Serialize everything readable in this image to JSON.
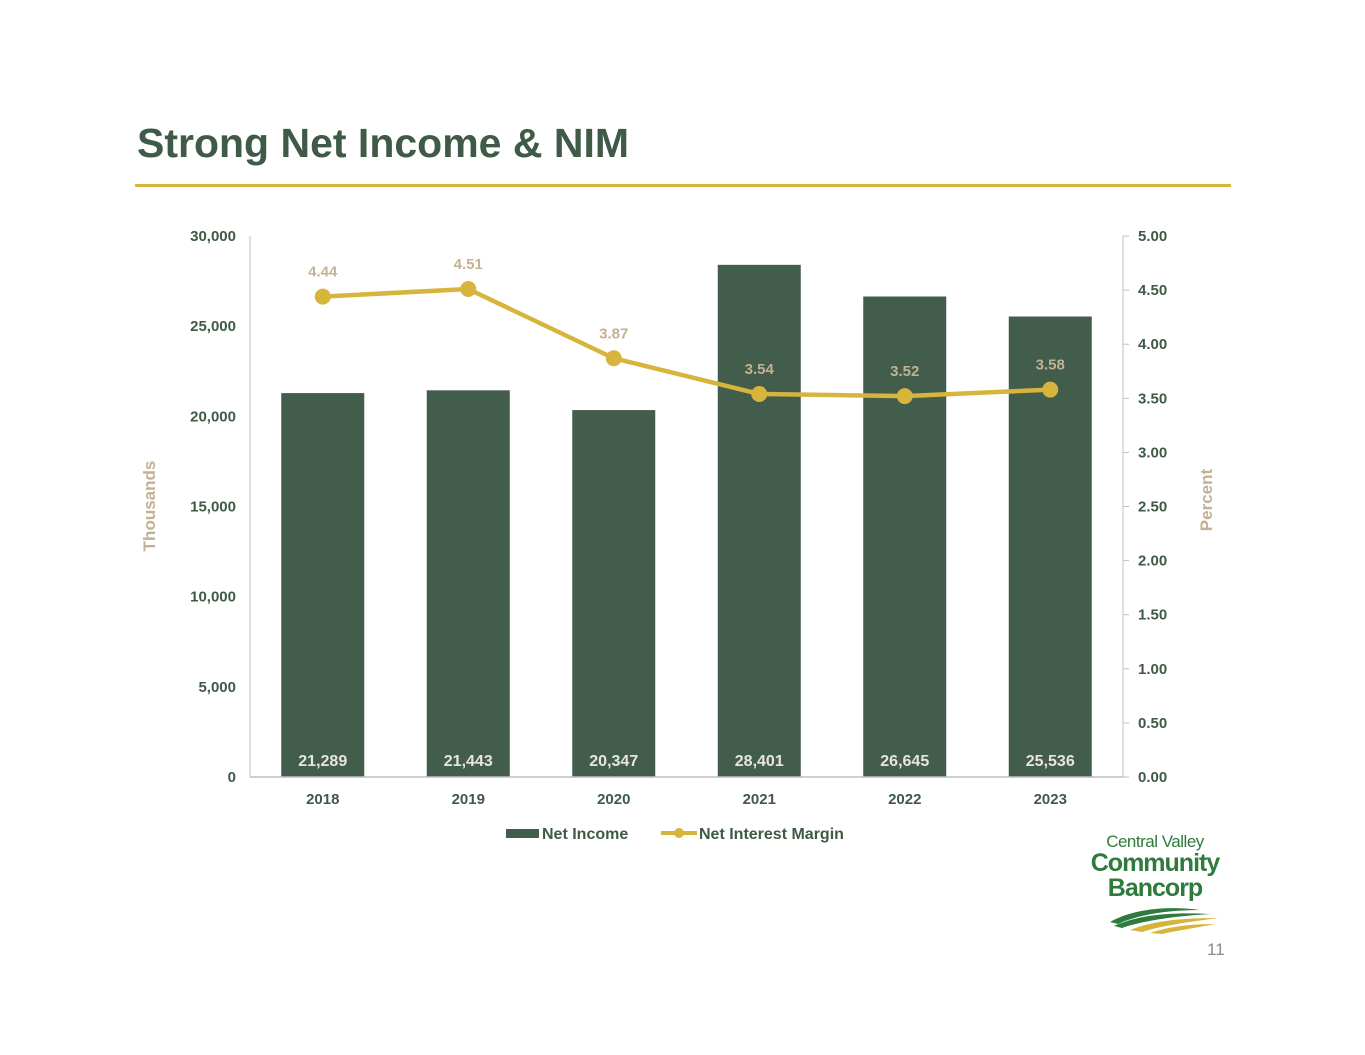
{
  "slide": {
    "title": "Strong Net Income & NIM",
    "page_number": "11"
  },
  "logo": {
    "line1": "Central Valley",
    "line2": "Community",
    "line3": "Bancorp",
    "colors": {
      "green": "#2f7a3d",
      "gold": "#d7b43c"
    }
  },
  "colors": {
    "title": "#3f5a47",
    "rule": "#d7b43c",
    "bar": "#435d4c",
    "line": "#d7b43c",
    "line_label": "#c2b192",
    "axis_title": "#c2b192",
    "bar_label": "#e8e6dc"
  },
  "chart_data": {
    "type": "bar",
    "categories": [
      "2018",
      "2019",
      "2020",
      "2021",
      "2022",
      "2023"
    ],
    "series": [
      {
        "name": "Net Income",
        "type": "bar",
        "axis": "left",
        "values": [
          21289,
          21443,
          20347,
          28401,
          26645,
          25536
        ],
        "labels": [
          "21,289",
          "21,443",
          "20,347",
          "28,401",
          "26,645",
          "25,536"
        ]
      },
      {
        "name": "Net Interest Margin",
        "type": "line",
        "axis": "right",
        "values": [
          4.44,
          4.51,
          3.87,
          3.54,
          3.52,
          3.58
        ],
        "labels": [
          "4.44",
          "4.51",
          "3.87",
          "3.54",
          "3.52",
          "3.58"
        ]
      }
    ],
    "ylabel": "Thousands",
    "y2label": "Percent",
    "ylim": [
      0,
      30000
    ],
    "y2lim": [
      0,
      5
    ],
    "yticks": [
      "0",
      "5,000",
      "10,000",
      "15,000",
      "20,000",
      "25,000",
      "30,000"
    ],
    "y2ticks": [
      "0.00",
      "0.50",
      "1.00",
      "1.50",
      "2.00",
      "2.50",
      "3.00",
      "3.50",
      "4.00",
      "4.50",
      "5.00"
    ],
    "grid": false,
    "legend": "bottom"
  }
}
